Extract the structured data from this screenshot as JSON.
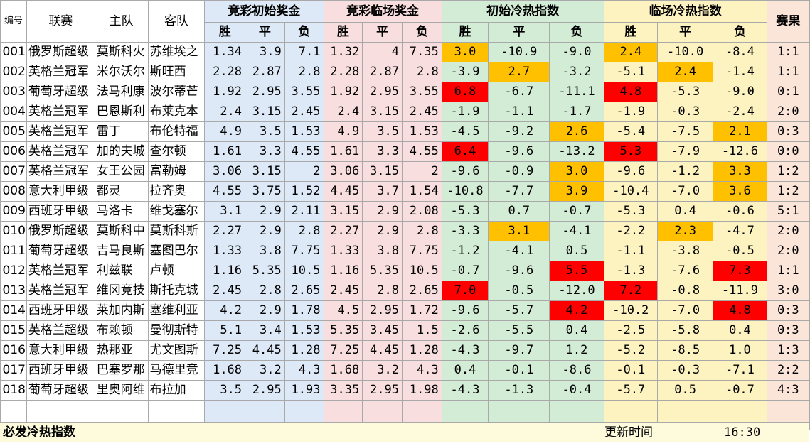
{
  "headers": {
    "id": "编号",
    "league": "联赛",
    "home": "主队",
    "away": "客队",
    "odds_initial": "竞彩初始奖金",
    "odds_final": "竞彩临场奖金",
    "index_initial": "初始冷热指数",
    "index_final": "临场冷热指数",
    "result": "赛果",
    "win": "胜",
    "draw": "平",
    "lose": "负"
  },
  "colors": {
    "hot_orange": "#ffc000",
    "hot_red": "#ff0000"
  },
  "rows": [
    {
      "id": "001",
      "league": "俄罗斯超级",
      "home": "莫斯科火",
      "away": "苏维埃之",
      "oi": [
        "1.34",
        "3.9",
        "7.1"
      ],
      "of": [
        "1.32",
        "4",
        "7.35"
      ],
      "ii": [
        "3.0",
        "-10.9",
        "-9.0"
      ],
      "if": [
        "2.4",
        "-10.0",
        "-8.4"
      ],
      "res": "1:1",
      "hi": [
        "o",
        "",
        ""
      ],
      "hf": [
        "o",
        "",
        ""
      ]
    },
    {
      "id": "002",
      "league": "英格兰冠军",
      "home": "米尔沃尔",
      "away": "斯旺西",
      "oi": [
        "2.28",
        "2.87",
        "2.8"
      ],
      "of": [
        "2.28",
        "2.87",
        "2.8"
      ],
      "ii": [
        "-3.9",
        "2.7",
        "-3.2"
      ],
      "if": [
        "-5.1",
        "2.4",
        "-1.4"
      ],
      "res": "1:1",
      "hi": [
        "",
        "o",
        ""
      ],
      "hf": [
        "",
        "o",
        ""
      ]
    },
    {
      "id": "003",
      "league": "葡萄牙超级",
      "home": "法马利康",
      "away": "波尔蒂芒",
      "oi": [
        "1.92",
        "2.95",
        "3.55"
      ],
      "of": [
        "1.92",
        "2.95",
        "3.55"
      ],
      "ii": [
        "6.8",
        "-6.7",
        "-11.1"
      ],
      "if": [
        "4.8",
        "-5.3",
        "-9.0"
      ],
      "res": "0:1",
      "hi": [
        "r",
        "",
        ""
      ],
      "hf": [
        "r",
        "",
        ""
      ]
    },
    {
      "id": "004",
      "league": "英格兰冠军",
      "home": "巴恩斯利",
      "away": "布莱克本",
      "oi": [
        "2.4",
        "3.15",
        "2.45"
      ],
      "of": [
        "2.4",
        "3.15",
        "2.45"
      ],
      "ii": [
        "-1.9",
        "-1.1",
        "-1.7"
      ],
      "if": [
        "-1.9",
        "-0.3",
        "-2.4"
      ],
      "res": "2:0",
      "hi": [
        "",
        "",
        ""
      ],
      "hf": [
        "",
        "",
        ""
      ]
    },
    {
      "id": "005",
      "league": "英格兰冠军",
      "home": "雷丁",
      "away": "布伦特福",
      "oi": [
        "4.9",
        "3.5",
        "1.53"
      ],
      "of": [
        "4.9",
        "3.5",
        "1.53"
      ],
      "ii": [
        "-4.5",
        "-9.2",
        "2.6"
      ],
      "if": [
        "-5.4",
        "-7.5",
        "2.1"
      ],
      "res": "0:3",
      "hi": [
        "",
        "",
        "o"
      ],
      "hf": [
        "",
        "",
        "o"
      ]
    },
    {
      "id": "006",
      "league": "英格兰冠军",
      "home": "加的夫城",
      "away": "查尔顿",
      "oi": [
        "1.61",
        "3.3",
        "4.55"
      ],
      "of": [
        "1.61",
        "3.3",
        "4.55"
      ],
      "ii": [
        "6.4",
        "-9.6",
        "-13.2"
      ],
      "if": [
        "5.3",
        "-7.9",
        "-12.6"
      ],
      "res": "0:0",
      "hi": [
        "r",
        "",
        ""
      ],
      "hf": [
        "r",
        "",
        ""
      ]
    },
    {
      "id": "007",
      "league": "英格兰冠军",
      "home": "女王公园",
      "away": "富勒姆",
      "oi": [
        "3.06",
        "3.15",
        "2"
      ],
      "of": [
        "3.06",
        "3.15",
        "2"
      ],
      "ii": [
        "-9.6",
        "-0.9",
        "3.0"
      ],
      "if": [
        "-9.6",
        "-1.2",
        "3.3"
      ],
      "res": "1:2",
      "hi": [
        "",
        "",
        "o"
      ],
      "hf": [
        "",
        "",
        "o"
      ]
    },
    {
      "id": "008",
      "league": "意大利甲级",
      "home": "都灵",
      "away": "拉齐奥",
      "oi": [
        "4.55",
        "3.75",
        "1.52"
      ],
      "of": [
        "4.45",
        "3.7",
        "1.54"
      ],
      "ii": [
        "-10.8",
        "-7.7",
        "3.9"
      ],
      "if": [
        "-10.4",
        "-7.0",
        "3.6"
      ],
      "res": "1:2",
      "hi": [
        "",
        "",
        "o"
      ],
      "hf": [
        "",
        "",
        "o"
      ]
    },
    {
      "id": "009",
      "league": "西班牙甲级",
      "home": "马洛卡",
      "away": "维戈塞尔",
      "oi": [
        "3.1",
        "2.9",
        "2.11"
      ],
      "of": [
        "3.15",
        "2.9",
        "2.08"
      ],
      "ii": [
        "-5.3",
        "0.7",
        "-0.7"
      ],
      "if": [
        "-5.3",
        "0.4",
        "-0.6"
      ],
      "res": "5:1",
      "hi": [
        "",
        "",
        ""
      ],
      "hf": [
        "",
        "",
        ""
      ]
    },
    {
      "id": "010",
      "league": "俄罗斯超级",
      "home": "莫斯科中",
      "away": "莫斯科斯",
      "oi": [
        "2.27",
        "2.9",
        "2.8"
      ],
      "of": [
        "2.27",
        "2.9",
        "2.8"
      ],
      "ii": [
        "-3.3",
        "3.1",
        "-4.1"
      ],
      "if": [
        "-2.2",
        "2.3",
        "-4.7"
      ],
      "res": "2:0",
      "hi": [
        "",
        "o",
        ""
      ],
      "hf": [
        "",
        "o",
        ""
      ]
    },
    {
      "id": "011",
      "league": "葡萄牙超级",
      "home": "吉马良斯",
      "away": "塞图巴尔",
      "oi": [
        "1.33",
        "3.8",
        "7.75"
      ],
      "of": [
        "1.33",
        "3.8",
        "7.75"
      ],
      "ii": [
        "-1.2",
        "-4.1",
        "0.5"
      ],
      "if": [
        "-1.1",
        "-3.8",
        "-0.5"
      ],
      "res": "2:0",
      "hi": [
        "",
        "",
        ""
      ],
      "hf": [
        "",
        "",
        ""
      ]
    },
    {
      "id": "012",
      "league": "英格兰冠军",
      "home": "利兹联",
      "away": "卢顿",
      "oi": [
        "1.16",
        "5.35",
        "10.5"
      ],
      "of": [
        "1.16",
        "5.35",
        "10.5"
      ],
      "ii": [
        "-0.7",
        "-9.6",
        "5.5"
      ],
      "if": [
        "-1.3",
        "-7.6",
        "7.3"
      ],
      "res": "1:1",
      "hi": [
        "",
        "",
        "r"
      ],
      "hf": [
        "",
        "",
        "r"
      ]
    },
    {
      "id": "013",
      "league": "英格兰冠军",
      "home": "维冈竞技",
      "away": "斯托克城",
      "oi": [
        "2.45",
        "2.8",
        "2.65"
      ],
      "of": [
        "2.45",
        "2.8",
        "2.65"
      ],
      "ii": [
        "7.0",
        "-0.5",
        "-12.0"
      ],
      "if": [
        "7.2",
        "-0.8",
        "-11.9"
      ],
      "res": "3:0",
      "hi": [
        "r",
        "",
        ""
      ],
      "hf": [
        "r",
        "",
        ""
      ]
    },
    {
      "id": "014",
      "league": "西班牙甲级",
      "home": "莱加内斯",
      "away": "塞维利亚",
      "oi": [
        "4.2",
        "2.9",
        "1.78"
      ],
      "of": [
        "4.5",
        "2.95",
        "1.72"
      ],
      "ii": [
        "-9.6",
        "-5.7",
        "4.2"
      ],
      "if": [
        "-10.2",
        "-7.0",
        "4.8"
      ],
      "res": "0:3",
      "hi": [
        "",
        "",
        "r"
      ],
      "hf": [
        "",
        "",
        "r"
      ]
    },
    {
      "id": "015",
      "league": "英格兰超级",
      "home": "布赖顿",
      "away": "曼彻斯特",
      "oi": [
        "5.1",
        "3.4",
        "1.53"
      ],
      "of": [
        "5.35",
        "3.45",
        "1.5"
      ],
      "ii": [
        "-2.6",
        "-5.5",
        "0.4"
      ],
      "if": [
        "-2.5",
        "-5.8",
        "0.4"
      ],
      "res": "0:3",
      "hi": [
        "",
        "",
        ""
      ],
      "hf": [
        "",
        "",
        ""
      ]
    },
    {
      "id": "016",
      "league": "意大利甲级",
      "home": "热那亚",
      "away": "尤文图斯",
      "oi": [
        "7.25",
        "4.45",
        "1.28"
      ],
      "of": [
        "7.25",
        "4.45",
        "1.28"
      ],
      "ii": [
        "-4.3",
        "-9.7",
        "1.2"
      ],
      "if": [
        "-5.2",
        "-8.5",
        "1.0"
      ],
      "res": "1:3",
      "hi": [
        "",
        "",
        ""
      ],
      "hf": [
        "",
        "",
        ""
      ]
    },
    {
      "id": "017",
      "league": "西班牙甲级",
      "home": "巴塞罗那",
      "away": "马德里竞",
      "oi": [
        "1.68",
        "3.2",
        "4.3"
      ],
      "of": [
        "1.68",
        "3.2",
        "4.3"
      ],
      "ii": [
        "0.4",
        "-0.1",
        "-8.6"
      ],
      "if": [
        "-0.1",
        "-0.3",
        "-7.1"
      ],
      "res": "2:2",
      "hi": [
        "",
        "",
        ""
      ],
      "hf": [
        "",
        "",
        ""
      ]
    },
    {
      "id": "018",
      "league": "葡萄牙超级",
      "home": "里奥阿维",
      "away": "布拉加",
      "oi": [
        "3.5",
        "2.95",
        "1.93"
      ],
      "of": [
        "3.35",
        "2.95",
        "1.98"
      ],
      "ii": [
        "-4.3",
        "-1.3",
        "-0.4"
      ],
      "if": [
        "-5.7",
        "0.5",
        "-0.7"
      ],
      "res": "4:3",
      "hi": [
        "",
        "",
        ""
      ],
      "hf": [
        "",
        "",
        ""
      ]
    }
  ],
  "footer": {
    "title": "必发冷热指数",
    "updated_label": "更新时间",
    "updated_time": "16:30"
  }
}
